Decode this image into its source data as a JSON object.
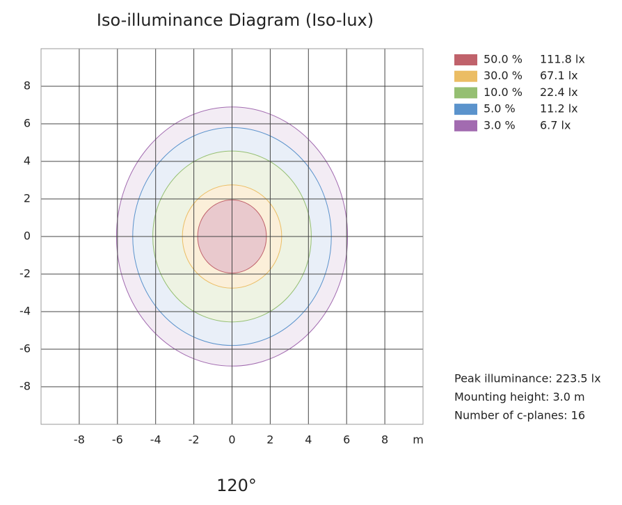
{
  "chart_data": {
    "type": "isolux",
    "title": "Iso-illuminance Diagram (Iso-lux)",
    "xlim": [
      -10,
      10
    ],
    "ylim": [
      -10,
      10
    ],
    "xticks": [
      -8,
      -6,
      -4,
      -2,
      0,
      2,
      4,
      6,
      8,
      {
        "value": 10,
        "label": "m"
      }
    ],
    "yticks": [
      -8,
      -6,
      -4,
      -2,
      0,
      2,
      4,
      6,
      8
    ],
    "grid": true,
    "series": [
      {
        "name": "3.0 %",
        "lux": "6.7 lx",
        "color": "#a26bb0",
        "fill": "#f3ecf4",
        "x_radius": 6.05,
        "y_radius": 6.9
      },
      {
        "name": "5.0 %",
        "lux": "11.2 lx",
        "color": "#5b93cc",
        "fill": "#e9eff8",
        "x_radius": 5.2,
        "y_radius": 5.8
      },
      {
        "name": "10.0 %",
        "lux": "22.4 lx",
        "color": "#95bf72",
        "fill": "#eef3e3",
        "x_radius": 4.15,
        "y_radius": 4.55
      },
      {
        "name": "30.0 %",
        "lux": "67.1 lx",
        "color": "#ebbd64",
        "fill": "#fbefd9",
        "x_radius": 2.6,
        "y_radius": 2.75
      },
      {
        "name": "50.0 %",
        "lux": "111.8 lx",
        "color": "#c0626b",
        "fill": "#e9c9cd",
        "x_radius": 1.8,
        "y_radius": 1.95
      }
    ],
    "info": [
      "Peak illuminance: 223.5 lx",
      "Mounting height: 3.0 m",
      "Number of c-planes: 16"
    ],
    "beam_angle": "120°"
  }
}
